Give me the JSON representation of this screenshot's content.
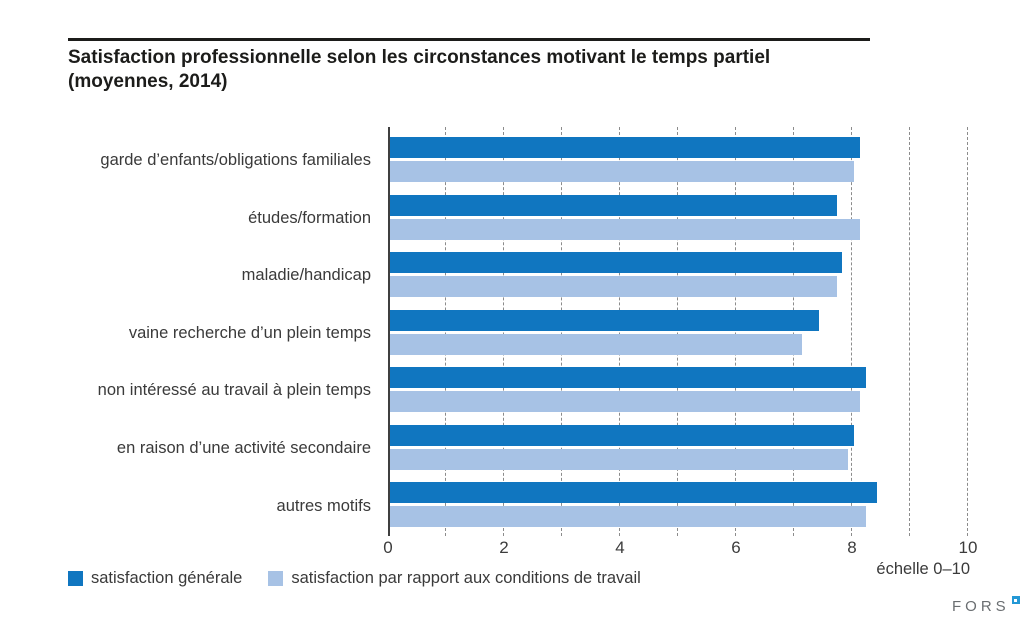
{
  "header": {
    "title_line1": "Satisfaction professionnelle selon les circonstances motivant le temps partiel",
    "title_line2": "(moyennes, 2014)"
  },
  "chart_data": {
    "type": "bar",
    "orientation": "horizontal",
    "title": "Satisfaction professionnelle selon les circonstances motivant le temps partiel (moyennes, 2014)",
    "categories": [
      "garde d’enfants/obligations familiales",
      "études/formation",
      "maladie/handicap",
      "vaine recherche d’un plein temps",
      "non intéressé au travail à plein temps",
      "en raison d’une activité secondaire",
      "autres motifs"
    ],
    "series": [
      {
        "name": "satisfaction générale",
        "color": "#1076c0",
        "values": [
          8.1,
          7.7,
          7.8,
          7.4,
          8.2,
          8.0,
          8.4
        ]
      },
      {
        "name": "satisfaction par rapport aux conditions de travail",
        "color": "#a7c2e5",
        "values": [
          8.0,
          8.1,
          7.7,
          7.1,
          8.1,
          7.9,
          8.2
        ]
      }
    ],
    "xlim": [
      0,
      10
    ],
    "x_tick_labels": [
      "0",
      "2",
      "4",
      "6",
      "8",
      "10"
    ],
    "x_tick_values": [
      0,
      2,
      4,
      6,
      8,
      10
    ],
    "gridlines": "vertical dashed at every integer 1–10",
    "legend_position": "bottom-left",
    "axis_note": "échelle 0–10"
  },
  "footer": {
    "logo_text": "FORS"
  }
}
